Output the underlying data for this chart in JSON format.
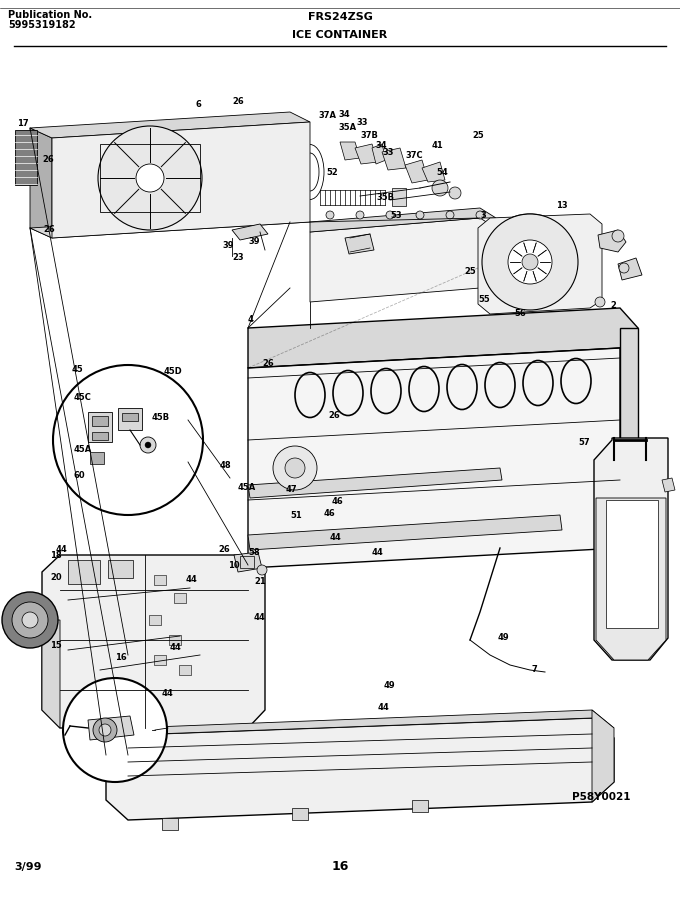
{
  "pub_label": "Publication No.",
  "pub_number": "5995319182",
  "title_center": "FRS24ZSG",
  "section_title": "ICE CONTAINER",
  "date": "3/99",
  "page_number": "16",
  "diagram_ref": "P58Y0021",
  "bg_color": "#ffffff",
  "fig_width": 6.8,
  "fig_height": 8.99,
  "dpi": 100
}
